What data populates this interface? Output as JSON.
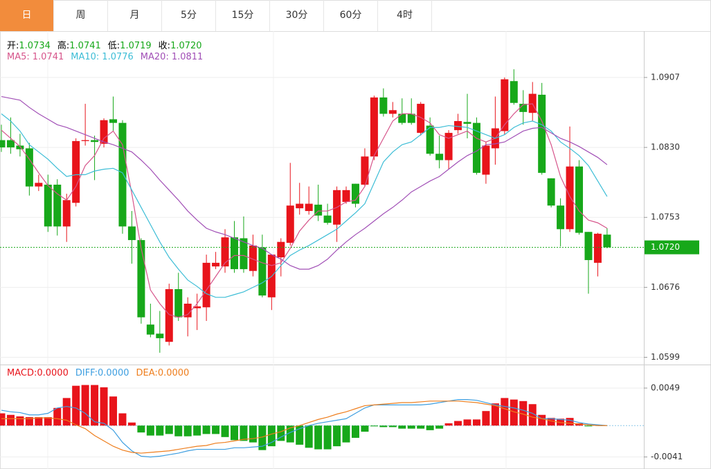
{
  "tabs": [
    "日",
    "周",
    "月",
    "5分",
    "15分",
    "30分",
    "60分",
    "4时"
  ],
  "active_tab": 0,
  "chart_data": [
    {
      "type": "candlestick",
      "ohlc_legend": [
        {
          "label": "开:",
          "value": 1.0734
        },
        {
          "label": "高:",
          "value": 1.0741
        },
        {
          "label": "低:",
          "value": 1.0719
        },
        {
          "label": "收:",
          "value": 1.072,
          "value_label": "1.0720"
        }
      ],
      "up_color": "#e8141b",
      "down_color": "#17a81a",
      "open": [
        1.0838,
        1.0838,
        1.0832,
        1.0829,
        1.0787,
        1.0789,
        1.0789,
        1.0743,
        1.0769,
        1.0837,
        1.0838,
        1.0834,
        1.0861,
        1.0857,
        1.0743,
        1.0728,
        1.0635,
        1.0625,
        1.0616,
        1.0674,
        1.0643,
        1.0653,
        1.0654,
        1.0699,
        1.0699,
        1.0731,
        1.073,
        1.0694,
        1.072,
        1.0665,
        1.0709,
        1.0725,
        1.0763,
        1.076,
        1.0767,
        1.0755,
        1.0745,
        1.077,
        1.079,
        1.0789,
        1.082,
        1.0885,
        1.0867,
        1.0867,
        1.0867,
        1.0846,
        1.0854,
        1.0823,
        1.0816,
        1.0849,
        1.0858,
        1.0857,
        1.08,
        1.0829,
        1.0848,
        1.0903,
        1.0878,
        1.0868,
        1.0888,
        1.0796,
        1.0766,
        1.074,
        1.0809,
        1.0737,
        1.0703,
        1.0734
      ],
      "high": [
        1.0855,
        1.0863,
        1.0845,
        1.0835,
        1.08,
        1.08,
        1.0795,
        1.0779,
        1.084,
        1.0878,
        1.0843,
        1.0862,
        1.0886,
        1.086,
        1.076,
        1.073,
        1.0658,
        1.065,
        1.068,
        1.0692,
        1.0665,
        1.0669,
        1.0712,
        1.0715,
        1.074,
        1.0749,
        1.0754,
        1.0734,
        1.0734,
        1.0712,
        1.073,
        1.0813,
        1.0791,
        1.0787,
        1.0789,
        1.0768,
        1.0787,
        1.0787,
        1.079,
        1.0829,
        1.0887,
        1.0895,
        1.088,
        1.0884,
        1.0884,
        1.088,
        1.0863,
        1.0843,
        1.0849,
        1.0867,
        1.0889,
        1.0863,
        1.0836,
        1.0886,
        1.0907,
        1.0916,
        1.0893,
        1.0902,
        1.0901,
        1.0796,
        1.0774,
        1.0853,
        1.0816,
        1.0737,
        1.0736,
        1.0741
      ],
      "low": [
        1.0825,
        1.0823,
        1.082,
        1.0777,
        1.0782,
        1.0737,
        1.0733,
        1.0726,
        1.0765,
        1.0832,
        1.0794,
        1.083,
        1.0848,
        1.0735,
        1.0702,
        1.0636,
        1.0621,
        1.0604,
        1.0612,
        1.0639,
        1.0622,
        1.0629,
        1.0639,
        1.0696,
        1.0692,
        1.0692,
        1.0692,
        1.0688,
        1.0665,
        1.0651,
        1.0688,
        1.0722,
        1.0756,
        1.0756,
        1.0749,
        1.0745,
        1.0726,
        1.0768,
        1.0764,
        1.0787,
        1.0816,
        1.0864,
        1.0863,
        1.0855,
        1.0855,
        1.0843,
        1.0821,
        1.0807,
        1.0806,
        1.0845,
        1.084,
        1.08,
        1.079,
        1.0811,
        1.0844,
        1.0877,
        1.0855,
        1.0859,
        1.08,
        1.0764,
        1.0721,
        1.0737,
        1.0734,
        1.0669,
        1.0688,
        1.0719
      ],
      "close": [
        1.083,
        1.083,
        1.0828,
        1.0787,
        1.0791,
        1.0743,
        1.0743,
        1.0772,
        1.0837,
        1.0838,
        1.0836,
        1.086,
        1.0857,
        1.0743,
        1.0728,
        1.0643,
        1.0624,
        1.062,
        1.0674,
        1.0643,
        1.0658,
        1.0655,
        1.0703,
        1.0703,
        1.0731,
        1.0696,
        1.0696,
        1.0722,
        1.0667,
        1.0712,
        1.0726,
        1.0766,
        1.0768,
        1.0768,
        1.0755,
        1.0747,
        1.0783,
        1.0783,
        1.0768,
        1.082,
        1.0885,
        1.0867,
        1.0871,
        1.0857,
        1.0857,
        1.0878,
        1.0823,
        1.0816,
        1.0846,
        1.0859,
        1.0856,
        1.0802,
        1.0832,
        1.0851,
        1.0905,
        1.0879,
        1.0869,
        1.0889,
        1.0802,
        1.0766,
        1.074,
        1.0809,
        1.0736,
        1.0706,
        1.0735,
        1.072
      ],
      "series": [
        {
          "name": "MA5:",
          "current": 1.0741,
          "color": "#d6548a",
          "values": [
            1.0849,
            1.084,
            1.0831,
            1.0817,
            1.0802,
            1.0788,
            1.0779,
            1.0772,
            1.0787,
            1.081,
            1.0821,
            1.084,
            1.0848,
            1.0833,
            1.0779,
            1.0719,
            1.0673,
            1.0658,
            1.0646,
            1.0643,
            1.0646,
            1.0658,
            1.0673,
            1.0688,
            1.0703,
            1.0711,
            1.0711,
            1.0707,
            1.0703,
            1.07,
            1.0703,
            1.0719,
            1.0738,
            1.075,
            1.076,
            1.076,
            1.0764,
            1.077,
            1.0772,
            1.0787,
            1.0821,
            1.084,
            1.0859,
            1.0867,
            1.0867,
            1.0863,
            1.0857,
            1.0844,
            1.084,
            1.0844,
            1.0848,
            1.084,
            1.0836,
            1.084,
            1.0855,
            1.0867,
            1.0877,
            1.0878,
            1.0859,
            1.0833,
            1.0798,
            1.0776,
            1.076,
            1.075,
            1.0747,
            1.0741
          ]
        },
        {
          "name": "MA10:",
          "current": 1.0776,
          "color": "#3cbdd6",
          "values": [
            1.0867,
            1.0859,
            1.0848,
            1.0833,
            1.0825,
            1.0817,
            1.0807,
            1.0798,
            1.08,
            1.08,
            1.0804,
            1.0806,
            1.0807,
            1.0802,
            1.0783,
            1.0764,
            1.0745,
            1.0726,
            1.0709,
            1.0696,
            1.0684,
            1.0677,
            1.0669,
            1.0665,
            1.0665,
            1.0668,
            1.0671,
            1.0676,
            1.0681,
            1.0688,
            1.07,
            1.0711,
            1.0717,
            1.0722,
            1.0728,
            1.0734,
            1.074,
            1.0749,
            1.0758,
            1.0768,
            1.0791,
            1.0814,
            1.0825,
            1.0833,
            1.0836,
            1.0844,
            1.0852,
            1.0852,
            1.0854,
            1.0853,
            1.0852,
            1.0848,
            1.0844,
            1.084,
            1.0844,
            1.0852,
            1.0857,
            1.0859,
            1.0855,
            1.0848,
            1.0836,
            1.0829,
            1.0821,
            1.081,
            1.0793,
            1.0776
          ]
        },
        {
          "name": "MA20:",
          "current": 1.0811,
          "color": "#a14fb6",
          "values": [
            1.0886,
            1.0884,
            1.0882,
            1.0874,
            1.0867,
            1.0861,
            1.0855,
            1.0852,
            1.0848,
            1.0844,
            1.084,
            1.0836,
            1.0833,
            1.0829,
            1.0825,
            1.0816,
            1.0806,
            1.0794,
            1.0783,
            1.0772,
            1.076,
            1.075,
            1.0741,
            1.0737,
            1.0734,
            1.073,
            1.0726,
            1.0722,
            1.0719,
            1.0712,
            1.0707,
            1.07,
            1.0696,
            1.0696,
            1.07,
            1.0707,
            1.0717,
            1.0726,
            1.0734,
            1.0741,
            1.0749,
            1.0757,
            1.0764,
            1.0772,
            1.0781,
            1.0787,
            1.0793,
            1.0798,
            1.0806,
            1.0814,
            1.0821,
            1.0826,
            1.0833,
            1.0834,
            1.0836,
            1.0842,
            1.0848,
            1.0851,
            1.0852,
            1.0846,
            1.084,
            1.0836,
            1.0831,
            1.0825,
            1.0819,
            1.0811
          ]
        }
      ],
      "last_price": {
        "value": 1.072,
        "label": "1.0720"
      },
      "ylim": [
        1.0591,
        1.0958
      ],
      "yticks": [
        1.0907,
        {
          "value": 1.083,
          "label": "1.0830"
        },
        1.0753,
        1.0676,
        1.0599
      ],
      "grid": true
    },
    {
      "type": "macd",
      "legend": [
        {
          "label": "MACD:",
          "value": 0,
          "value_label": "0.0000",
          "color": "#e8141b"
        },
        {
          "label": "DIFF:",
          "value": 0,
          "value_label": "0.0000",
          "color": "#3d9ee0"
        },
        {
          "label": "DEA:",
          "value": 0,
          "value_label": "0.0000",
          "color": "#ee7d1c"
        }
      ],
      "up_color": "#e8141b",
      "down_color": "#17a81a",
      "histogram": [
        0.0016,
        0.0014,
        0.0012,
        0.0011,
        0.0011,
        0.0011,
        0.0023,
        0.0036,
        0.0052,
        0.0053,
        0.0053,
        0.005,
        0.0038,
        0.0016,
        0.0004,
        -0.0009,
        -0.0013,
        -0.0013,
        -0.0011,
        -0.0014,
        -0.0014,
        -0.0013,
        -0.0011,
        -0.0011,
        -0.0015,
        -0.0019,
        -0.002,
        -0.0022,
        -0.0032,
        -0.0027,
        -0.002,
        -0.0022,
        -0.0025,
        -0.0029,
        -0.0031,
        -0.0031,
        -0.0027,
        -0.0022,
        -0.0016,
        -0.0008,
        -0.0001,
        -0.0002,
        -0.0002,
        -0.0004,
        -0.0004,
        -0.0004,
        -0.0006,
        -0.0004,
        0.0003,
        0.0006,
        0.0008,
        0.0008,
        0.0019,
        0.0029,
        0.0036,
        0.0034,
        0.0032,
        0.0028,
        0.0014,
        0.001,
        0.0009,
        0.001,
        0.0003,
        -0.0001,
        0.0001,
        0
      ],
      "series": [
        {
          "color": "#3d9ee0",
          "values": [
            0.002,
            0.0018,
            0.0017,
            0.0014,
            0.0014,
            0.0016,
            0.0023,
            0.0025,
            0.0023,
            0.0016,
            0.0005,
            0.0003,
            -0.0006,
            -0.0022,
            -0.0033,
            -0.004,
            -0.0041,
            -0.004,
            -0.0038,
            -0.0036,
            -0.0033,
            -0.0031,
            -0.0031,
            -0.0031,
            -0.0031,
            -0.0029,
            -0.0029,
            -0.0028,
            -0.0027,
            -0.0022,
            -0.0015,
            -0.0009,
            -0.0004,
            0,
            0.0003,
            0.0005,
            0.0007,
            0.0009,
            0.0016,
            0.0023,
            0.0027,
            0.0027,
            0.0027,
            0.0027,
            0.0027,
            0.0027,
            0.0028,
            0.003,
            0.0032,
            0.0034,
            0.0034,
            0.0033,
            0.003,
            0.0027,
            0.0025,
            0.0023,
            0.002,
            0.0016,
            0.0009,
            0.0009,
            0.0008,
            0.0007,
            0.0004,
            0.0002,
            0.0001,
            0
          ]
        },
        {
          "color": "#ee7d1c",
          "values": [
            0.0009,
            0.0009,
            0.0009,
            0.0009,
            0.001,
            0.001,
            0.0009,
            0.0007,
            0.0001,
            -0.0004,
            -0.0013,
            -0.002,
            -0.0027,
            -0.0032,
            -0.0035,
            -0.0036,
            -0.0035,
            -0.0034,
            -0.0033,
            -0.0031,
            -0.0029,
            -0.0027,
            -0.0026,
            -0.0023,
            -0.0022,
            -0.002,
            -0.0018,
            -0.0017,
            -0.0015,
            -0.0011,
            -0.0008,
            -0.0003,
            0,
            0.0004,
            0.0008,
            0.0011,
            0.0015,
            0.0018,
            0.0022,
            0.0026,
            0.0027,
            0.0028,
            0.0029,
            0.003,
            0.003,
            0.0031,
            0.0032,
            0.0032,
            0.0032,
            0.0032,
            0.0031,
            0.003,
            0.0028,
            0.0026,
            0.0022,
            0.0018,
            0.0015,
            0.0011,
            0.0009,
            0.0006,
            0.0004,
            0.0003,
            0.0002,
            0.0001,
            0,
            0
          ]
        }
      ],
      "ylim": [
        -0.0054,
        0.0077
      ],
      "yticks": [
        0.0049,
        -0.0041
      ],
      "grid": true
    }
  ]
}
